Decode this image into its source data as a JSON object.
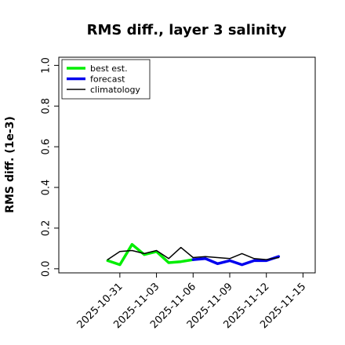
{
  "chart_data": {
    "type": "line",
    "title": "RMS diff., layer 3 salinity",
    "ylabel": "RMS diff. (1e-3)",
    "xlabel": "",
    "xlim": [
      "2025-10-26",
      "2025-11-16"
    ],
    "ylim": [
      -0.02,
      1.04
    ],
    "yticks": [
      0.0,
      0.2,
      0.4,
      0.6,
      0.8,
      1.0
    ],
    "ytick_labels": [
      "0.0",
      "0.2",
      "0.4",
      "0.6",
      "0.8",
      "1.0"
    ],
    "xticks": [
      "2025-10-31",
      "2025-11-03",
      "2025-11-06",
      "2025-11-09",
      "2025-11-12",
      "2025-11-15"
    ],
    "xtick_labels": [
      "2025-10-31",
      "2025-11-03",
      "2025-11-06",
      "2025-11-09",
      "2025-11-12",
      "2025-11-15"
    ],
    "highlight_tick": "2025-11-06",
    "highlight_color": "#228B22",
    "grid": false,
    "legend_position": "top-left",
    "series": [
      {
        "name": "best est.",
        "color": "#00ee00",
        "x": [
          "2025-10-30",
          "2025-10-31",
          "2025-11-01",
          "2025-11-02",
          "2025-11-03",
          "2025-11-04",
          "2025-11-05",
          "2025-11-06"
        ],
        "y": [
          0.04,
          0.02,
          0.12,
          0.07,
          0.085,
          0.03,
          0.035,
          0.045
        ]
      },
      {
        "name": "forecast",
        "color": "#0000ee",
        "x": [
          "2025-11-06",
          "2025-11-07",
          "2025-11-08",
          "2025-11-09",
          "2025-11-10",
          "2025-11-11",
          "2025-11-12",
          "2025-11-13"
        ],
        "y": [
          0.045,
          0.05,
          0.025,
          0.04,
          0.02,
          0.04,
          0.04,
          0.06
        ]
      },
      {
        "name": "climatology",
        "color": "#000000",
        "x": [
          "2025-10-30",
          "2025-10-31",
          "2025-11-01",
          "2025-11-02",
          "2025-11-03",
          "2025-11-04",
          "2025-11-05",
          "2025-11-06",
          "2025-11-07",
          "2025-11-08",
          "2025-11-09",
          "2025-11-10",
          "2025-11-11",
          "2025-11-12",
          "2025-11-13"
        ],
        "y": [
          0.045,
          0.085,
          0.09,
          0.075,
          0.09,
          0.05,
          0.105,
          0.055,
          0.06,
          0.055,
          0.05,
          0.075,
          0.05,
          0.045,
          0.055
        ]
      }
    ]
  }
}
